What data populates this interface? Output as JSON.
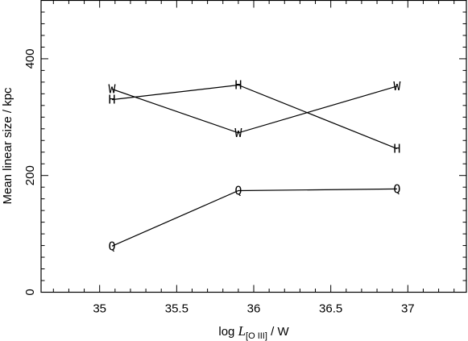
{
  "chart_data": {
    "type": "line",
    "title": "",
    "xlabel": {
      "prefix": "log ",
      "symbol": "L",
      "subscript": "[O III]",
      "suffix": " / W"
    },
    "ylabel": "Mean linear size / kpc",
    "xlim": [
      34.62,
      37.38
    ],
    "ylim": [
      0,
      500
    ],
    "xticks_major": [
      35,
      35.5,
      36,
      36.5,
      37
    ],
    "xtick_labels": [
      "35",
      "35.5",
      "36",
      "36.5",
      "37"
    ],
    "xticks_minor_step": 0.1,
    "yticks_major": [
      0,
      200,
      400
    ],
    "ytick_labels": [
      "0",
      "200",
      "400"
    ],
    "yticks_minor_step": 20,
    "grid": false,
    "series": [
      {
        "marker": "W",
        "x": [
          35.08,
          35.9,
          36.93
        ],
        "y": [
          348,
          273,
          353
        ]
      },
      {
        "marker": "H",
        "x": [
          35.08,
          35.9,
          36.93
        ],
        "y": [
          330,
          355,
          246
        ]
      },
      {
        "marker": "Q",
        "x": [
          35.08,
          35.9,
          36.93
        ],
        "y": [
          79,
          174,
          177
        ]
      }
    ]
  }
}
